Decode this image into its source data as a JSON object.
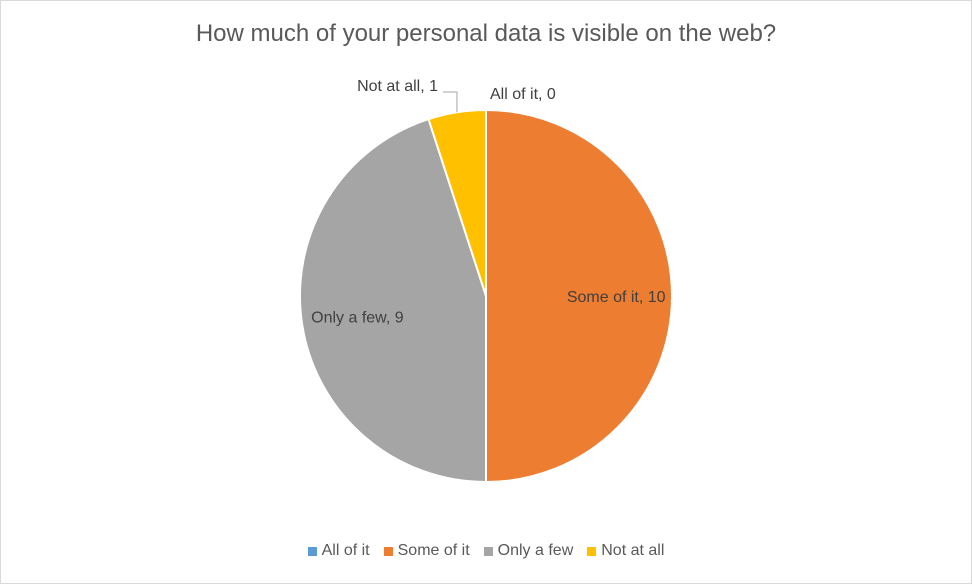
{
  "chart_data": {
    "type": "pie",
    "title": "How much of your personal data is visible on the web?",
    "categories": [
      "All of it",
      "Some of it",
      "Only a few",
      "Not at all"
    ],
    "values": [
      0,
      10,
      9,
      1
    ],
    "data_labels": [
      "All of it, 0",
      "Some of it, 10",
      "Only a few, 9",
      "Not at all, 1"
    ],
    "colors": [
      "#5b9bd5",
      "#ed7d31",
      "#a5a5a5",
      "#ffc000"
    ],
    "legend_position": "bottom"
  }
}
